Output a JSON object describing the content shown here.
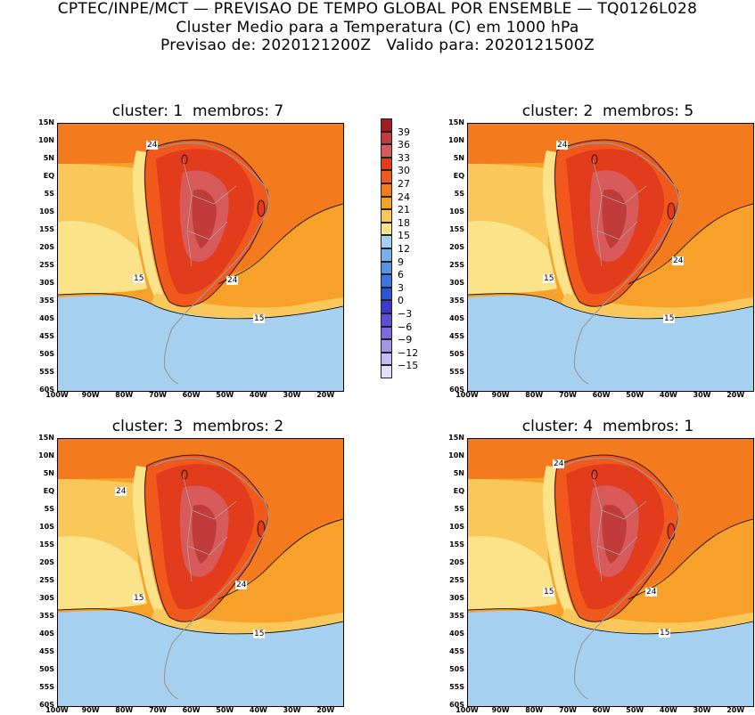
{
  "title": {
    "line1": "CPTEC/INPE/MCT — PREVISAO DE TEMPO GLOBAL POR ENSEMBLE — TQ0126L028",
    "line2": "Cluster Medio para a Temperatura (C) em 1000 hPa",
    "line3": "Previsao de: 2020121200Z   Valido para: 2020121500Z"
  },
  "panels": [
    {
      "title": "cluster: 1  membros: 7",
      "contour_labels": [
        "24",
        "15",
        "24",
        "15"
      ]
    },
    {
      "title": "cluster: 2  membros: 5",
      "contour_labels": [
        "24",
        "15",
        "24",
        "15"
      ]
    },
    {
      "title": "cluster: 3  membros: 2",
      "contour_labels": [
        "24",
        "15",
        "24",
        "15"
      ]
    },
    {
      "title": "cluster: 4  membros: 1",
      "contour_labels": [
        "24",
        "15",
        "24",
        "15"
      ]
    }
  ],
  "lat_labels": [
    "15N",
    "10N",
    "5N",
    "EQ",
    "5S",
    "10S",
    "15S",
    "20S",
    "25S",
    "30S",
    "35S",
    "40S",
    "45S",
    "50S",
    "55S",
    "60S"
  ],
  "lon_labels": [
    "100W",
    "90W",
    "80W",
    "70W",
    "60W",
    "50W",
    "40W",
    "30W",
    "20W"
  ],
  "colorbar": {
    "labels": [
      "39",
      "36",
      "33",
      "30",
      "27",
      "24",
      "21",
      "18",
      "15",
      "12",
      "9",
      "6",
      "3",
      "0",
      "−3",
      "−6",
      "−9",
      "−12",
      "−15"
    ],
    "colors": [
      "#a31c1c",
      "#c23b3b",
      "#d85a5a",
      "#e23c1c",
      "#f0581c",
      "#f47a1e",
      "#f7a12a",
      "#fac85a",
      "#fbe38a",
      "#a6d0f0",
      "#78b0ea",
      "#5a92e6",
      "#3f74e0",
      "#2a55d2",
      "#3b3bd0",
      "#5c4ed8",
      "#7c6ae0",
      "#a096ea",
      "#c4bcf2",
      "#e4defa"
    ]
  }
}
